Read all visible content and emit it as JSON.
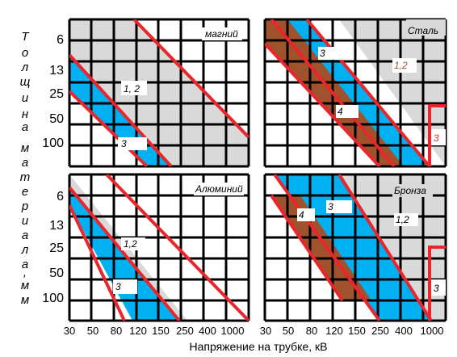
{
  "y_axis": {
    "label_letters": [
      "Т",
      "о",
      "л",
      "щ",
      "и",
      "н",
      "а",
      "м",
      "а",
      "т",
      "е",
      "р",
      "и",
      "а",
      "л",
      "а",
      ",",
      "м",
      "м"
    ],
    "ticks": [
      "6",
      "13",
      "25",
      "50",
      "100"
    ]
  },
  "x_axis": {
    "label": "Напряжение на трубке, кВ",
    "ticks_left": [
      "30",
      "50",
      "80",
      "120",
      "150",
      "250",
      "400",
      "1000"
    ],
    "ticks_right": [
      "30",
      "50",
      "80",
      "120",
      "150",
      "250",
      "400",
      "1000"
    ]
  },
  "panels": [
    {
      "id": "magnesium",
      "title": "магний",
      "labels": {
        "lines": "1, 2",
        "zone": "3"
      }
    },
    {
      "id": "steel",
      "title": "Сталь",
      "labels": {
        "zone3": "3",
        "lines": "1,2",
        "zone4": "4",
        "edge3": "3"
      }
    },
    {
      "id": "aluminium",
      "title": "Алюминий",
      "labels": {
        "lines": "1,2",
        "zone": "3"
      }
    },
    {
      "id": "bronze",
      "title": "Бронза",
      "labels": {
        "zone3": "3",
        "zone4": "4",
        "lines": "1,2",
        "edge3": "3"
      }
    }
  ],
  "colors": {
    "gray": "#d9d9d9",
    "blue": "#00b0f0",
    "brown": "#a0522d",
    "red": "#e8262c",
    "grid": "#000000"
  }
}
